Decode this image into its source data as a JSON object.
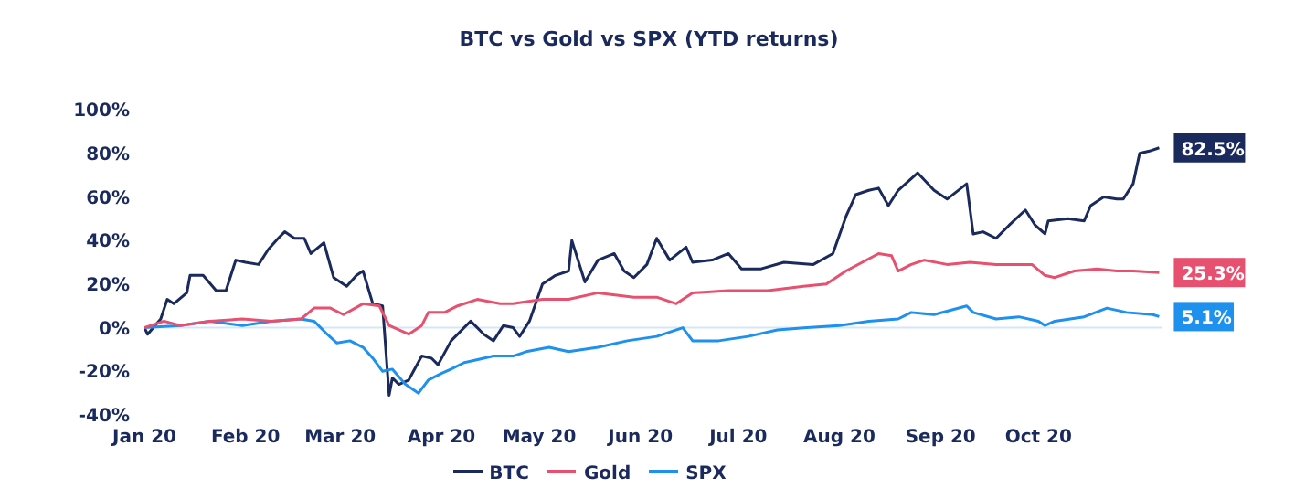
{
  "chart_data": {
    "type": "line",
    "title": "BTC vs Gold  vs SPX (YTD returns)",
    "xlim": [
      "2020-01-01",
      "2020-11-08"
    ],
    "xticks": [
      {
        "value": "2020-01",
        "label": "Jan 20"
      },
      {
        "value": "2020-02",
        "label": "Feb 20"
      },
      {
        "value": "2020-03",
        "label": "Mar 20"
      },
      {
        "value": "2020-04",
        "label": "Apr 20"
      },
      {
        "value": "2020-05",
        "label": "May 20"
      },
      {
        "value": "2020-06",
        "label": "Jun 20"
      },
      {
        "value": "2020-07",
        "label": "Jul 20"
      },
      {
        "value": "2020-08",
        "label": "Aug 20"
      },
      {
        "value": "2020-09",
        "label": "Sep 20"
      },
      {
        "value": "2020-10",
        "label": "Oct 20"
      }
    ],
    "ylim": [
      -40,
      100
    ],
    "yticks": [
      {
        "value": -40,
        "label": "-40%"
      },
      {
        "value": -20,
        "label": "-20%"
      },
      {
        "value": 0,
        "label": "0%"
      },
      {
        "value": 20,
        "label": "20%"
      },
      {
        "value": 40,
        "label": "40%"
      },
      {
        "value": 60,
        "label": "60%"
      },
      {
        "value": 80,
        "label": "80%"
      },
      {
        "value": 100,
        "label": "100%"
      }
    ],
    "grid": false,
    "legend": "bottom",
    "marker": "none",
    "line_style": "solid",
    "ref_lines": [
      {
        "axis": "y",
        "value": 0,
        "color": "#d6e6f7"
      }
    ],
    "series": [
      {
        "name": "BTC",
        "color": "#1b2a5c",
        "x": [
          "2020-01-01",
          "2020-01-02",
          "2020-01-06",
          "2020-01-08",
          "2020-01-10",
          "2020-01-14",
          "2020-01-15",
          "2020-01-19",
          "2020-01-23",
          "2020-01-26",
          "2020-01-29",
          "2020-02-01",
          "2020-02-05",
          "2020-02-08",
          "2020-02-11",
          "2020-02-13",
          "2020-02-16",
          "2020-02-19",
          "2020-02-21",
          "2020-02-25",
          "2020-02-28",
          "2020-03-03",
          "2020-03-06",
          "2020-03-08",
          "2020-03-11",
          "2020-03-14",
          "2020-03-16",
          "2020-03-17",
          "2020-03-19",
          "2020-03-22",
          "2020-03-26",
          "2020-03-29",
          "2020-03-31",
          "2020-04-04",
          "2020-04-10",
          "2020-04-14",
          "2020-04-17",
          "2020-04-20",
          "2020-04-23",
          "2020-04-25",
          "2020-04-28",
          "2020-05-02",
          "2020-05-06",
          "2020-05-10",
          "2020-05-11",
          "2020-05-15",
          "2020-05-19",
          "2020-05-24",
          "2020-05-27",
          "2020-05-30",
          "2020-06-03",
          "2020-06-06",
          "2020-06-10",
          "2020-06-15",
          "2020-06-17",
          "2020-06-23",
          "2020-06-28",
          "2020-07-02",
          "2020-07-08",
          "2020-07-15",
          "2020-07-24",
          "2020-07-30",
          "2020-08-03",
          "2020-08-06",
          "2020-08-10",
          "2020-08-13",
          "2020-08-16",
          "2020-08-19",
          "2020-08-25",
          "2020-08-30",
          "2020-09-03",
          "2020-09-09",
          "2020-09-11",
          "2020-09-14",
          "2020-09-18",
          "2020-09-22",
          "2020-09-27",
          "2020-09-30",
          "2020-10-03",
          "2020-10-04",
          "2020-10-10",
          "2020-10-15",
          "2020-10-17",
          "2020-10-21",
          "2020-10-25",
          "2020-10-27",
          "2020-10-30",
          "2020-11-01",
          "2020-11-04",
          "2020-11-07"
        ],
        "values": [
          0,
          -3,
          4,
          13,
          11,
          16,
          24,
          24,
          17,
          17,
          31,
          30,
          29,
          36,
          41,
          44,
          41,
          41,
          34,
          39,
          23,
          19,
          24,
          26,
          11,
          10,
          -31,
          -23,
          -26,
          -24,
          -13,
          -14,
          -17,
          -6,
          3,
          -3,
          -6,
          1,
          0,
          -4,
          3,
          20,
          24,
          26,
          40,
          21,
          31,
          34,
          26,
          23,
          29,
          41,
          31,
          37,
          30,
          31,
          34,
          27,
          27,
          30,
          29,
          34,
          51,
          61,
          63,
          64,
          56,
          63,
          71,
          63,
          59,
          66,
          43,
          44,
          41,
          47,
          54,
          47,
          43,
          49,
          50,
          49,
          56,
          60,
          59,
          59,
          66,
          80,
          81,
          82.5
        ],
        "value_labels": [
          null,
          null,
          null,
          null,
          null,
          null,
          null,
          null,
          null,
          null,
          null,
          null,
          null,
          null,
          null,
          null,
          null,
          null,
          null,
          null,
          null,
          null,
          null,
          null,
          null,
          null,
          null,
          null,
          null,
          null,
          null,
          null,
          null,
          null,
          null,
          null,
          null,
          null,
          null,
          null,
          null,
          null,
          null,
          null,
          null,
          null,
          null,
          null,
          null,
          null,
          null,
          null,
          null,
          null,
          null,
          null,
          null,
          null,
          null,
          null,
          null,
          null,
          null,
          null,
          null,
          null,
          null,
          null,
          null,
          null,
          null,
          null,
          null,
          null,
          null,
          null,
          null,
          null,
          null,
          null,
          null,
          null,
          null,
          null,
          null,
          null,
          null,
          null,
          null,
          "82.5%"
        ]
      },
      {
        "name": "SPX",
        "color": "#1e90ee",
        "x": [
          "2020-01-01",
          "2020-01-12",
          "2020-01-21",
          "2020-01-31",
          "2020-02-09",
          "2020-02-18",
          "2020-02-22",
          "2020-02-26",
          "2020-02-29",
          "2020-03-04",
          "2020-03-08",
          "2020-03-11",
          "2020-03-14",
          "2020-03-17",
          "2020-03-21",
          "2020-03-25",
          "2020-03-28",
          "2020-04-01",
          "2020-04-04",
          "2020-04-08",
          "2020-04-14",
          "2020-04-17",
          "2020-04-23",
          "2020-04-27",
          "2020-05-04",
          "2020-05-10",
          "2020-05-19",
          "2020-05-28",
          "2020-06-06",
          "2020-06-14",
          "2020-06-17",
          "2020-06-25",
          "2020-07-04",
          "2020-07-13",
          "2020-07-22",
          "2020-08-01",
          "2020-08-10",
          "2020-08-19",
          "2020-08-23",
          "2020-08-30",
          "2020-09-09",
          "2020-09-11",
          "2020-09-18",
          "2020-09-25",
          "2020-10-01",
          "2020-10-03",
          "2020-10-06",
          "2020-10-15",
          "2020-10-22",
          "2020-10-28",
          "2020-11-05",
          "2020-11-07"
        ],
        "values": [
          0,
          1,
          3,
          1,
          3,
          4,
          3,
          -3,
          -7,
          -6,
          -9,
          -14,
          -20,
          -19,
          -26,
          -30,
          -24,
          -21,
          -19,
          -16,
          -14,
          -13,
          -13,
          -11,
          -9,
          -11,
          -9,
          -6,
          -4,
          0,
          -6,
          -6,
          -4,
          -1,
          0,
          1,
          3,
          4,
          7,
          6,
          10,
          7,
          4,
          5,
          3,
          1,
          3,
          5,
          9,
          7,
          6,
          5.1
        ],
        "value_labels": [
          null,
          null,
          null,
          null,
          null,
          null,
          null,
          null,
          null,
          null,
          null,
          null,
          null,
          null,
          null,
          null,
          null,
          null,
          null,
          null,
          null,
          null,
          null,
          null,
          null,
          null,
          null,
          null,
          null,
          null,
          null,
          null,
          null,
          null,
          null,
          null,
          null,
          null,
          null,
          null,
          null,
          null,
          null,
          null,
          null,
          null,
          null,
          null,
          null,
          null,
          null,
          "5.1%"
        ]
      },
      {
        "name": "Gold",
        "color": "#e8506f",
        "x": [
          "2020-01-01",
          "2020-01-07",
          "2020-01-12",
          "2020-01-21",
          "2020-01-31",
          "2020-02-09",
          "2020-02-18",
          "2020-02-22",
          "2020-02-27",
          "2020-03-02",
          "2020-03-08",
          "2020-03-13",
          "2020-03-16",
          "2020-03-22",
          "2020-03-26",
          "2020-03-28",
          "2020-04-02",
          "2020-04-06",
          "2020-04-12",
          "2020-04-19",
          "2020-04-23",
          "2020-05-02",
          "2020-05-10",
          "2020-05-19",
          "2020-05-30",
          "2020-06-06",
          "2020-06-12",
          "2020-06-17",
          "2020-06-28",
          "2020-07-10",
          "2020-07-21",
          "2020-07-28",
          "2020-08-03",
          "2020-08-08",
          "2020-08-13",
          "2020-08-17",
          "2020-08-19",
          "2020-08-23",
          "2020-08-27",
          "2020-09-03",
          "2020-09-10",
          "2020-09-18",
          "2020-09-29",
          "2020-10-03",
          "2020-10-06",
          "2020-10-12",
          "2020-10-19",
          "2020-10-25",
          "2020-10-30",
          "2020-11-07"
        ],
        "values": [
          0,
          3,
          1,
          3,
          4,
          3,
          4,
          9,
          9,
          6,
          11,
          10,
          1,
          -3,
          1,
          7,
          7,
          10,
          13,
          11,
          11,
          13,
          13,
          16,
          14,
          14,
          11,
          16,
          17,
          17,
          19,
          20,
          26,
          30,
          34,
          33,
          26,
          29,
          31,
          29,
          30,
          29,
          29,
          24,
          23,
          26,
          27,
          26,
          26,
          25.3
        ],
        "value_labels": [
          null,
          null,
          null,
          null,
          null,
          null,
          null,
          null,
          null,
          null,
          null,
          null,
          null,
          null,
          null,
          null,
          null,
          null,
          null,
          null,
          null,
          null,
          null,
          null,
          null,
          null,
          null,
          null,
          null,
          null,
          null,
          null,
          null,
          null,
          null,
          null,
          null,
          null,
          null,
          null,
          null,
          null,
          null,
          null,
          null,
          null,
          null,
          null,
          null,
          "25.3%"
        ]
      }
    ]
  }
}
